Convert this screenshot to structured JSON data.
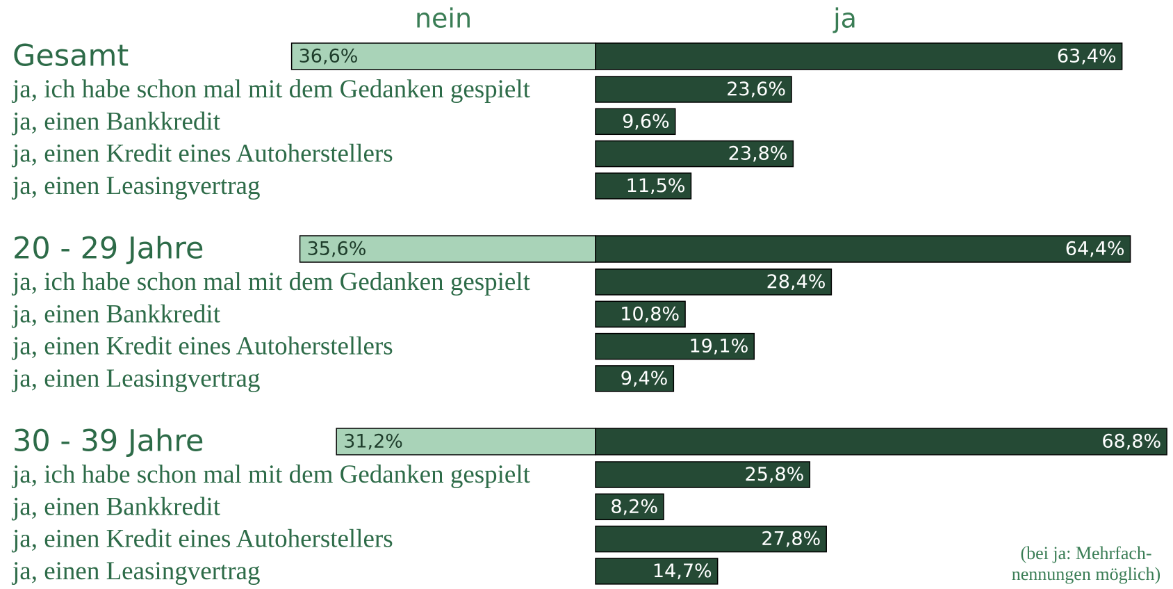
{
  "chart_data": {
    "type": "diverging_bar",
    "neg_header": "nein",
    "pos_header": "ja",
    "neg_color": "#a9d3b8",
    "pos_color": "#254a35",
    "groups": [
      {
        "name": "Gesamt",
        "neg": 36.6,
        "neg_label": "36,6%",
        "pos": 63.4,
        "pos_label": "63,4%",
        "categories": [
          "ja, ich habe schon mal mit dem Gedanken gespielt",
          "ja, einen Bankkredit",
          "ja, einen Kredit eines Autoherstellers",
          "ja, einen Leasingvertrag"
        ],
        "values": [
          23.6,
          9.6,
          23.8,
          11.5
        ],
        "value_labels": [
          "23,6%",
          "9,6%",
          "23,8%",
          "11,5%"
        ]
      },
      {
        "name": "20 - 29 Jahre",
        "neg": 35.6,
        "neg_label": "35,6%",
        "pos": 64.4,
        "pos_label": "64,4%",
        "categories": [
          "ja, ich habe schon mal mit dem Gedanken gespielt",
          "ja, einen Bankkredit",
          "ja, einen Kredit eines Autoherstellers",
          "ja, einen Leasingvertrag"
        ],
        "values": [
          28.4,
          10.8,
          19.1,
          9.4
        ],
        "value_labels": [
          "28,4%",
          "10,8%",
          "19,1%",
          "9,4%"
        ]
      },
      {
        "name": "30 - 39 Jahre",
        "neg": 31.2,
        "neg_label": "31,2%",
        "pos": 68.8,
        "pos_label": "68,8%",
        "categories": [
          "ja, ich habe schon mal mit dem Gedanken gespielt",
          "ja, einen Bankkredit",
          "ja, einen Kredit eines Autoherstellers",
          "ja, einen Leasingvertrag"
        ],
        "values": [
          25.8,
          8.2,
          27.8,
          14.7
        ],
        "value_labels": [
          "25,8%",
          "8,2%",
          "27,8%",
          "14,7%"
        ]
      }
    ],
    "note": [
      "(bei ja: Mehrfach-",
      "nennungen möglich)"
    ]
  }
}
